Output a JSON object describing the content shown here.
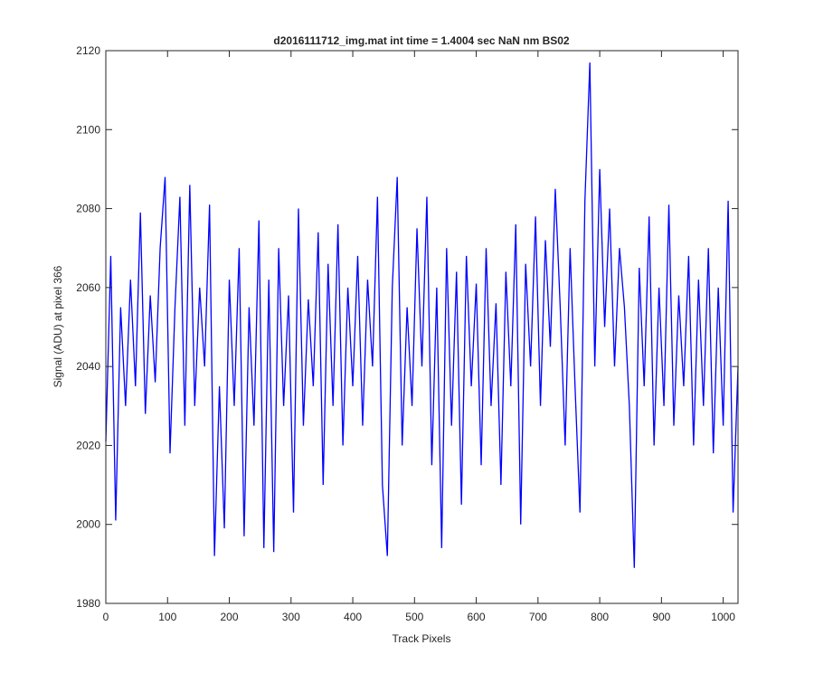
{
  "chart_data": {
    "type": "line",
    "title": "d2016111712_img.mat int time = 1.4004 sec  NaN nm BS02",
    "xlabel": "Track Pixels",
    "ylabel": "Signal (ADU) at pixel 366",
    "xlim": [
      0,
      1024
    ],
    "ylim": [
      1980,
      2120
    ],
    "xticks": [
      0,
      100,
      200,
      300,
      400,
      500,
      600,
      700,
      800,
      900,
      1000
    ],
    "yticks": [
      1980,
      2000,
      2020,
      2040,
      2060,
      2080,
      2100,
      2120
    ],
    "x": [
      0,
      8,
      16,
      24,
      32,
      40,
      48,
      56,
      64,
      72,
      80,
      88,
      96,
      104,
      112,
      120,
      128,
      136,
      144,
      152,
      160,
      168,
      176,
      184,
      192,
      200,
      208,
      216,
      224,
      232,
      240,
      248,
      256,
      264,
      272,
      280,
      288,
      296,
      304,
      312,
      320,
      328,
      336,
      344,
      352,
      360,
      368,
      376,
      384,
      392,
      400,
      408,
      416,
      424,
      432,
      440,
      448,
      456,
      464,
      472,
      480,
      488,
      496,
      504,
      512,
      520,
      528,
      536,
      544,
      552,
      560,
      568,
      576,
      584,
      592,
      600,
      608,
      616,
      624,
      632,
      640,
      648,
      656,
      664,
      672,
      680,
      688,
      696,
      704,
      712,
      720,
      728,
      736,
      744,
      752,
      760,
      768,
      776,
      784,
      792,
      800,
      808,
      816,
      824,
      832,
      840,
      848,
      856,
      864,
      872,
      880,
      888,
      896,
      904,
      912,
      920,
      928,
      936,
      944,
      952,
      960,
      968,
      976,
      984,
      992,
      1000,
      1008,
      1016,
      1024
    ],
    "series": [
      {
        "color": "#0000ff",
        "values": [
          2021,
          2068,
          2001,
          2055,
          2030,
          2062,
          2035,
          2079,
          2028,
          2058,
          2036,
          2070,
          2088,
          2018,
          2055,
          2083,
          2025,
          2086,
          2030,
          2060,
          2040,
          2081,
          1992,
          2035,
          1999,
          2062,
          2030,
          2070,
          1997,
          2055,
          2025,
          2077,
          1994,
          2062,
          1993,
          2070,
          2030,
          2058,
          2003,
          2080,
          2025,
          2057,
          2035,
          2074,
          2010,
          2066,
          2030,
          2076,
          2020,
          2060,
          2035,
          2068,
          2025,
          2062,
          2040,
          2083,
          2010,
          1992,
          2060,
          2088,
          2020,
          2055,
          2030,
          2075,
          2040,
          2083,
          2015,
          2060,
          1994,
          2070,
          2025,
          2064,
          2005,
          2068,
          2035,
          2061,
          2015,
          2070,
          2030,
          2056,
          2010,
          2064,
          2035,
          2076,
          2000,
          2066,
          2040,
          2078,
          2030,
          2072,
          2045,
          2085,
          2055,
          2020,
          2070,
          2035,
          2003,
          2082,
          2117,
          2040,
          2090,
          2050,
          2080,
          2040,
          2070,
          2055,
          2030,
          1989,
          2065,
          2035,
          2078,
          2020,
          2060,
          2030,
          2081,
          2025,
          2058,
          2035,
          2068,
          2020,
          2062,
          2030,
          2070,
          2018,
          2060,
          2025,
          2082,
          2003,
          2040
        ]
      }
    ]
  }
}
